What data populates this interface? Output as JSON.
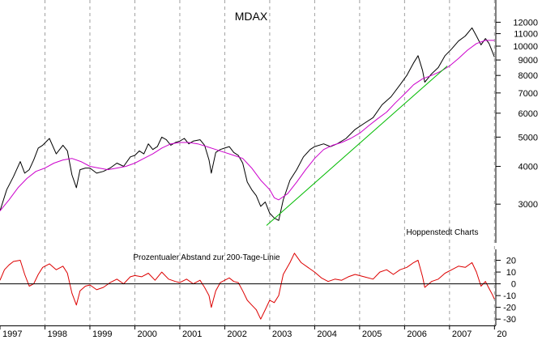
{
  "chart_data": [
    {
      "type": "line",
      "title": "MDAX",
      "annotation": "Hoppenstedt Charts",
      "yscale": "log",
      "ylim": [
        2450,
        12800
      ],
      "y_ticks": [
        3000,
        4000,
        5000,
        6000,
        7000,
        8000,
        9000,
        10000,
        11000,
        12000
      ],
      "x_ticks": [
        "1997",
        "1998",
        "1999",
        "2000",
        "2001",
        "2002",
        "2003",
        "2004",
        "2005",
        "2006",
        "2007",
        "20"
      ],
      "xlim": [
        1997.0,
        2008.03
      ],
      "grid": "vertical dashed at year boundaries",
      "series": [
        {
          "color": "#000000",
          "points": [
            [
              1997.0,
              2850
            ],
            [
              1997.15,
              3350
            ],
            [
              1997.3,
              3700
            ],
            [
              1997.45,
              4150
            ],
            [
              1997.55,
              3800
            ],
            [
              1997.65,
              3900
            ],
            [
              1997.75,
              4200
            ],
            [
              1997.85,
              4600
            ],
            [
              1997.95,
              4700
            ],
            [
              1998.1,
              4950
            ],
            [
              1998.25,
              4400
            ],
            [
              1998.4,
              4700
            ],
            [
              1998.5,
              4500
            ],
            [
              1998.6,
              3750
            ],
            [
              1998.7,
              3400
            ],
            [
              1998.78,
              3900
            ],
            [
              1998.9,
              3950
            ],
            [
              1999.0,
              3950
            ],
            [
              1999.15,
              3800
            ],
            [
              1999.3,
              3850
            ],
            [
              1999.45,
              3950
            ],
            [
              1999.6,
              4100
            ],
            [
              1999.75,
              4000
            ],
            [
              1999.9,
              4300
            ],
            [
              2000.0,
              4350
            ],
            [
              2000.1,
              4500
            ],
            [
              2000.2,
              4400
            ],
            [
              2000.3,
              4750
            ],
            [
              2000.4,
              4550
            ],
            [
              2000.5,
              4650
            ],
            [
              2000.6,
              5000
            ],
            [
              2000.7,
              4900
            ],
            [
              2000.8,
              4700
            ],
            [
              2000.9,
              4800
            ],
            [
              2001.0,
              4850
            ],
            [
              2001.1,
              4950
            ],
            [
              2001.2,
              4750
            ],
            [
              2001.3,
              4850
            ],
            [
              2001.45,
              4900
            ],
            [
              2001.55,
              4700
            ],
            [
              2001.65,
              4200
            ],
            [
              2001.7,
              3800
            ],
            [
              2001.8,
              4450
            ],
            [
              2001.9,
              4550
            ],
            [
              2002.0,
              4600
            ],
            [
              2002.1,
              4650
            ],
            [
              2002.2,
              4450
            ],
            [
              2002.3,
              4350
            ],
            [
              2002.4,
              4100
            ],
            [
              2002.5,
              3550
            ],
            [
              2002.6,
              3350
            ],
            [
              2002.7,
              3200
            ],
            [
              2002.8,
              2950
            ],
            [
              2002.9,
              3050
            ],
            [
              2003.0,
              2800
            ],
            [
              2003.1,
              2700
            ],
            [
              2003.2,
              2650
            ],
            [
              2003.3,
              3100
            ],
            [
              2003.45,
              3600
            ],
            [
              2003.6,
              3900
            ],
            [
              2003.75,
              4300
            ],
            [
              2003.9,
              4550
            ],
            [
              2004.0,
              4650
            ],
            [
              2004.2,
              4750
            ],
            [
              2004.35,
              4650
            ],
            [
              2004.5,
              4750
            ],
            [
              2004.7,
              4950
            ],
            [
              2004.9,
              5300
            ],
            [
              2005.1,
              5550
            ],
            [
              2005.3,
              5800
            ],
            [
              2005.5,
              6400
            ],
            [
              2005.7,
              6800
            ],
            [
              2005.9,
              7450
            ],
            [
              2006.05,
              8000
            ],
            [
              2006.2,
              8800
            ],
            [
              2006.3,
              9300
            ],
            [
              2006.4,
              8300
            ],
            [
              2006.45,
              7600
            ],
            [
              2006.6,
              8100
            ],
            [
              2006.75,
              8500
            ],
            [
              2006.9,
              9300
            ],
            [
              2007.05,
              9800
            ],
            [
              2007.2,
              10400
            ],
            [
              2007.35,
              10800
            ],
            [
              2007.5,
              11500
            ],
            [
              2007.6,
              10800
            ],
            [
              2007.7,
              10100
            ],
            [
              2007.8,
              10600
            ],
            [
              2007.88,
              10200
            ],
            [
              2007.95,
              9600
            ],
            [
              2008.0,
              9200
            ]
          ]
        },
        {
          "color": "#cc00cc",
          "points": [
            [
              1997.0,
              2850
            ],
            [
              1997.2,
              3100
            ],
            [
              1997.4,
              3400
            ],
            [
              1997.6,
              3650
            ],
            [
              1997.8,
              3850
            ],
            [
              1998.0,
              3950
            ],
            [
              1998.2,
              4100
            ],
            [
              1998.4,
              4200
            ],
            [
              1998.6,
              4250
            ],
            [
              1998.8,
              4150
            ],
            [
              1999.0,
              4000
            ],
            [
              1999.2,
              3950
            ],
            [
              1999.4,
              3900
            ],
            [
              1999.6,
              3950
            ],
            [
              1999.8,
              4000
            ],
            [
              2000.0,
              4100
            ],
            [
              2000.2,
              4250
            ],
            [
              2000.4,
              4400
            ],
            [
              2000.6,
              4600
            ],
            [
              2000.8,
              4750
            ],
            [
              2001.0,
              4800
            ],
            [
              2001.2,
              4800
            ],
            [
              2001.4,
              4750
            ],
            [
              2001.6,
              4650
            ],
            [
              2001.8,
              4550
            ],
            [
              2002.0,
              4450
            ],
            [
              2002.2,
              4350
            ],
            [
              2002.4,
              4250
            ],
            [
              2002.6,
              3950
            ],
            [
              2002.8,
              3600
            ],
            [
              2003.0,
              3350
            ],
            [
              2003.1,
              3150
            ],
            [
              2003.2,
              3100
            ],
            [
              2003.4,
              3250
            ],
            [
              2003.6,
              3550
            ],
            [
              2003.8,
              3900
            ],
            [
              2004.0,
              4250
            ],
            [
              2004.2,
              4550
            ],
            [
              2004.4,
              4700
            ],
            [
              2004.6,
              4800
            ],
            [
              2004.8,
              4950
            ],
            [
              2005.0,
              5150
            ],
            [
              2005.2,
              5450
            ],
            [
              2005.4,
              5750
            ],
            [
              2005.6,
              6050
            ],
            [
              2005.8,
              6500
            ],
            [
              2006.0,
              6950
            ],
            [
              2006.2,
              7450
            ],
            [
              2006.4,
              7800
            ],
            [
              2006.6,
              8000
            ],
            [
              2006.8,
              8250
            ],
            [
              2007.0,
              8600
            ],
            [
              2007.2,
              9100
            ],
            [
              2007.4,
              9700
            ],
            [
              2007.6,
              10200
            ],
            [
              2007.8,
              10450
            ],
            [
              2008.0,
              10450
            ]
          ]
        },
        {
          "color": "#00bb00",
          "points": [
            [
              2002.93,
              2550
            ],
            [
              2006.95,
              8600
            ]
          ]
        }
      ]
    },
    {
      "type": "line",
      "title": "Prozentualer Abstand zur 200-Tage-Linie",
      "ylim": [
        -34,
        30
      ],
      "y_ticks": [
        20,
        10,
        0,
        -10,
        -20,
        -30
      ],
      "x_ticks": [
        "1997",
        "1998",
        "1999",
        "2000",
        "2001",
        "2002",
        "2003",
        "2004",
        "2005",
        "2006",
        "2007",
        "20"
      ],
      "xlim": [
        1997.0,
        2008.03
      ],
      "series": [
        {
          "color": "#dd0000",
          "points": [
            [
              1997.0,
              3
            ],
            [
              1997.1,
              12
            ],
            [
              1997.2,
              16
            ],
            [
              1997.3,
              19
            ],
            [
              1997.45,
              20
            ],
            [
              1997.55,
              8
            ],
            [
              1997.65,
              -2
            ],
            [
              1997.75,
              0
            ],
            [
              1997.85,
              8
            ],
            [
              1997.95,
              14
            ],
            [
              1998.1,
              17
            ],
            [
              1998.25,
              12
            ],
            [
              1998.4,
              15
            ],
            [
              1998.5,
              9
            ],
            [
              1998.6,
              -8
            ],
            [
              1998.7,
              -18
            ],
            [
              1998.78,
              -6
            ],
            [
              1998.9,
              -2
            ],
            [
              1999.0,
              -1
            ],
            [
              1999.15,
              -5
            ],
            [
              1999.3,
              -3
            ],
            [
              1999.45,
              1
            ],
            [
              1999.6,
              4
            ],
            [
              1999.75,
              0
            ],
            [
              1999.9,
              6
            ],
            [
              2000.0,
              7
            ],
            [
              2000.15,
              6
            ],
            [
              2000.3,
              9
            ],
            [
              2000.45,
              3
            ],
            [
              2000.6,
              10
            ],
            [
              2000.75,
              4
            ],
            [
              2000.9,
              2
            ],
            [
              2001.0,
              1
            ],
            [
              2001.15,
              4
            ],
            [
              2001.3,
              0
            ],
            [
              2001.45,
              3
            ],
            [
              2001.55,
              -3
            ],
            [
              2001.65,
              -10
            ],
            [
              2001.7,
              -20
            ],
            [
              2001.8,
              -6
            ],
            [
              2001.9,
              1
            ],
            [
              2002.0,
              3
            ],
            [
              2002.1,
              5
            ],
            [
              2002.2,
              2
            ],
            [
              2002.3,
              1
            ],
            [
              2002.4,
              -6
            ],
            [
              2002.5,
              -14
            ],
            [
              2002.6,
              -18
            ],
            [
              2002.7,
              -22
            ],
            [
              2002.8,
              -30
            ],
            [
              2002.9,
              -22
            ],
            [
              2003.0,
              -14
            ],
            [
              2003.1,
              -16
            ],
            [
              2003.2,
              -10
            ],
            [
              2003.3,
              8
            ],
            [
              2003.45,
              18
            ],
            [
              2003.55,
              26
            ],
            [
              2003.7,
              18
            ],
            [
              2003.85,
              14
            ],
            [
              2004.0,
              10
            ],
            [
              2004.15,
              5
            ],
            [
              2004.3,
              2
            ],
            [
              2004.45,
              4
            ],
            [
              2004.6,
              3
            ],
            [
              2004.75,
              6
            ],
            [
              2004.9,
              8
            ],
            [
              2005.1,
              6
            ],
            [
              2005.3,
              4
            ],
            [
              2005.45,
              10
            ],
            [
              2005.6,
              12
            ],
            [
              2005.75,
              8
            ],
            [
              2005.9,
              12
            ],
            [
              2006.05,
              14
            ],
            [
              2006.2,
              18
            ],
            [
              2006.3,
              20
            ],
            [
              2006.4,
              6
            ],
            [
              2006.45,
              -3
            ],
            [
              2006.6,
              2
            ],
            [
              2006.75,
              4
            ],
            [
              2006.9,
              9
            ],
            [
              2007.05,
              12
            ],
            [
              2007.2,
              15
            ],
            [
              2007.35,
              14
            ],
            [
              2007.5,
              18
            ],
            [
              2007.6,
              10
            ],
            [
              2007.7,
              -2
            ],
            [
              2007.8,
              2
            ],
            [
              2007.88,
              -4
            ],
            [
              2007.95,
              -9
            ],
            [
              2008.0,
              -13
            ]
          ]
        },
        {
          "color": "#000000",
          "points": [
            [
              1997.0,
              0
            ],
            [
              2008.03,
              0
            ]
          ]
        }
      ]
    }
  ]
}
